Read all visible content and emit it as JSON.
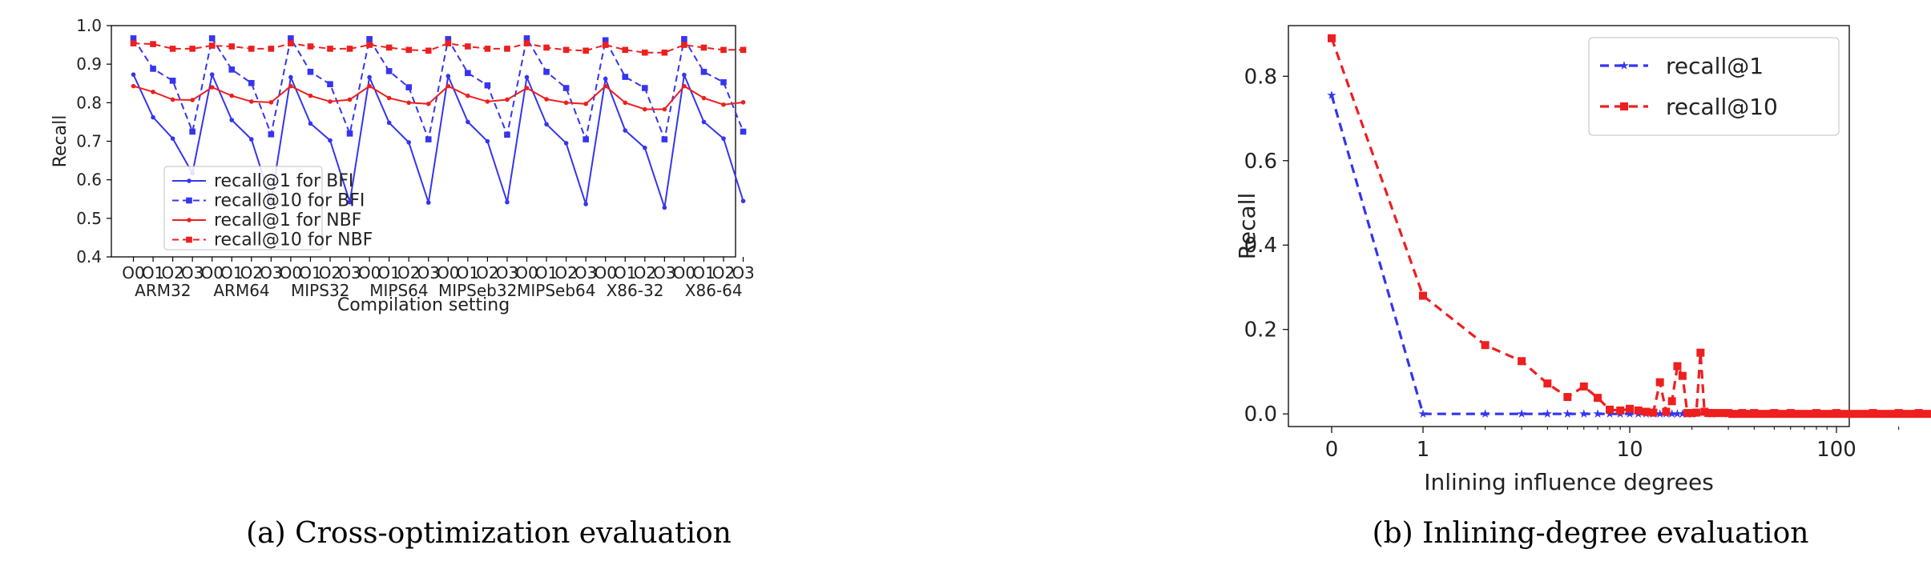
{
  "chart_data": [
    {
      "type": "line",
      "caption": "(a)  Cross-optimization evaluation",
      "xlabel": "Compilation setting",
      "ylabel": "Recall",
      "ylim": [
        0.4,
        1.0
      ],
      "yticks": [
        "0.4",
        "0.5",
        "0.6",
        "0.7",
        "0.8",
        "0.9",
        "1.0"
      ],
      "opt_levels": [
        "O0",
        "O1",
        "O2",
        "O3"
      ],
      "groups": [
        "ARM32",
        "ARM64",
        "MIPS32",
        "MIPS64",
        "MIPSeb32",
        "MIPSeb64",
        "X86-32",
        "X86-64"
      ],
      "legend_position": "lower-left",
      "series": [
        {
          "name": "recall@1 for BFI",
          "color": "#3535f0",
          "style": "solid",
          "marker": "dot",
          "values": [
            0.873,
            0.762,
            0.707,
            0.617,
            0.873,
            0.755,
            0.705,
            0.545,
            0.866,
            0.746,
            0.702,
            0.542,
            0.866,
            0.748,
            0.697,
            0.541,
            0.869,
            0.75,
            0.7,
            0.542,
            0.866,
            0.744,
            0.695,
            0.537,
            0.862,
            0.728,
            0.683,
            0.528,
            0.872,
            0.75,
            0.707,
            0.545
          ]
        },
        {
          "name": "recall@10 for BFI",
          "color": "#3535f0",
          "style": "dashed",
          "marker": "square",
          "values": [
            0.967,
            0.888,
            0.857,
            0.725,
            0.967,
            0.886,
            0.851,
            0.718,
            0.967,
            0.88,
            0.848,
            0.72,
            0.965,
            0.882,
            0.84,
            0.705,
            0.965,
            0.877,
            0.845,
            0.717,
            0.967,
            0.88,
            0.838,
            0.705,
            0.962,
            0.867,
            0.838,
            0.705,
            0.965,
            0.88,
            0.853,
            0.725
          ]
        },
        {
          "name": "recall@1 for NBF",
          "color": "#ee1f1f",
          "style": "solid",
          "marker": "dot",
          "values": [
            0.843,
            0.828,
            0.808,
            0.807,
            0.84,
            0.818,
            0.803,
            0.801,
            0.843,
            0.818,
            0.803,
            0.808,
            0.843,
            0.812,
            0.8,
            0.797,
            0.843,
            0.818,
            0.803,
            0.808,
            0.838,
            0.809,
            0.8,
            0.797,
            0.843,
            0.8,
            0.783,
            0.783,
            0.843,
            0.812,
            0.795,
            0.801
          ]
        },
        {
          "name": "recall@10 for NBF",
          "color": "#ee1f1f",
          "style": "dashed",
          "marker": "square",
          "values": [
            0.954,
            0.952,
            0.94,
            0.94,
            0.948,
            0.946,
            0.94,
            0.94,
            0.954,
            0.946,
            0.94,
            0.94,
            0.95,
            0.943,
            0.937,
            0.935,
            0.954,
            0.946,
            0.94,
            0.94,
            0.954,
            0.943,
            0.937,
            0.935,
            0.95,
            0.937,
            0.93,
            0.93,
            0.95,
            0.943,
            0.937,
            0.937
          ]
        }
      ]
    },
    {
      "type": "line",
      "caption": "(b)  Inlining-degree evaluation",
      "xlabel": "Inlining influence degrees",
      "ylabel": "Recall",
      "xscale": "symlog",
      "xlim": [
        0,
        300
      ],
      "xticks": [
        "0",
        "1",
        "10",
        "100"
      ],
      "ylim": [
        -0.03,
        0.92
      ],
      "yticks": [
        "0.0",
        "0.2",
        "0.4",
        "0.6",
        "0.8"
      ],
      "legend_position": "upper-right",
      "series": [
        {
          "name": "recall@1",
          "color": "#3535f0",
          "style": "dashed",
          "marker": "star",
          "x": [
            0,
            1,
            2,
            3,
            4,
            5,
            6,
            7,
            8,
            9,
            10,
            11,
            12,
            13,
            14,
            15,
            16,
            17,
            18,
            19,
            20,
            25,
            30,
            40,
            50,
            60,
            80,
            100,
            150,
            200,
            250,
            300
          ],
          "y": [
            0.755,
            0,
            0,
            0,
            0,
            0,
            0,
            0,
            0,
            0,
            0,
            0,
            0,
            0,
            0,
            0,
            0,
            0,
            0,
            0,
            0,
            0,
            0,
            0,
            0,
            0,
            0,
            0,
            0,
            0,
            0,
            0
          ]
        },
        {
          "name": "recall@10",
          "color": "#ee1f1f",
          "style": "dashed",
          "marker": "square",
          "x": [
            0,
            1,
            2,
            3,
            4,
            5,
            6,
            7,
            8,
            9,
            10,
            11,
            12,
            13,
            14,
            15,
            16,
            17,
            18,
            19,
            20,
            21,
            22,
            23,
            24,
            25,
            26,
            28,
            30,
            35,
            40,
            50,
            60,
            80,
            100,
            150,
            200,
            250,
            300
          ],
          "y": [
            0.89,
            0.28,
            0.163,
            0.125,
            0.072,
            0.04,
            0.065,
            0.038,
            0.01,
            0.008,
            0.012,
            0.008,
            0.005,
            0.003,
            0.075,
            0.005,
            0.03,
            0.113,
            0.09,
            0.002,
            0.002,
            0.003,
            0.145,
            0.005,
            0.002,
            0.002,
            0.002,
            0.002,
            0.002,
            0.002,
            0.002,
            0.002,
            0.002,
            0.002,
            0.002,
            0.002,
            0.002,
            0.002,
            0.002
          ]
        }
      ]
    }
  ]
}
